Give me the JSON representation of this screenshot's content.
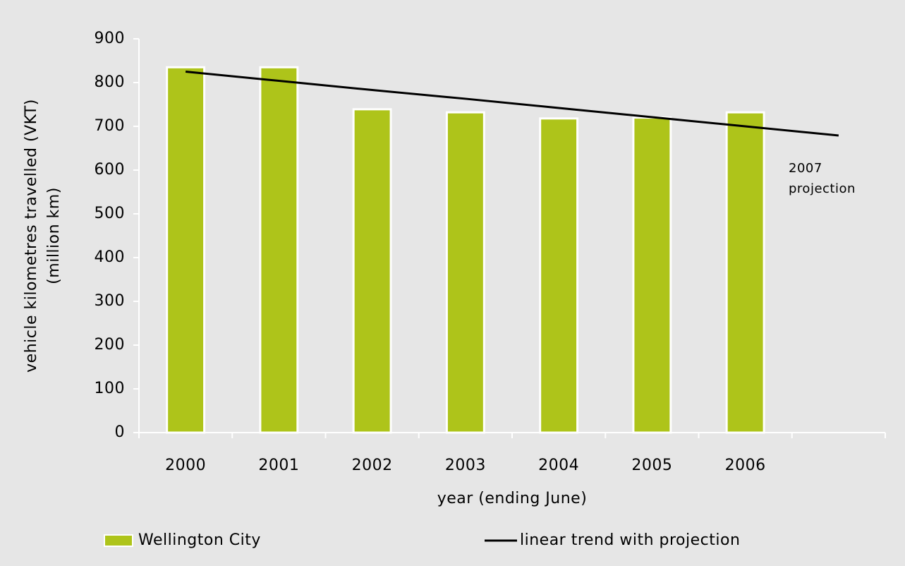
{
  "chart_data": {
    "type": "bar",
    "ylabel": [
      "vehicle kilometres travelled (VKT)",
      "(million km)"
    ],
    "xlabel": "year (ending June)",
    "categories": [
      "2000",
      "2001",
      "2002",
      "2003",
      "2004",
      "2005",
      "2006",
      null
    ],
    "series": [
      {
        "name": "Wellington City",
        "type": "bar",
        "color": "#aec41a",
        "values": [
          835,
          835,
          739,
          732,
          718,
          720,
          732,
          null
        ]
      },
      {
        "name": "linear trend with projection",
        "type": "line",
        "color": "#000000",
        "values": [
          825,
          804,
          783,
          763,
          742,
          721,
          700,
          679
        ]
      }
    ],
    "annotation": [
      "2007",
      "projection"
    ],
    "ylim": [
      0,
      900
    ],
    "yticks": [
      0,
      100,
      200,
      300,
      400,
      500,
      600,
      700,
      800,
      900
    ],
    "grid": false
  }
}
